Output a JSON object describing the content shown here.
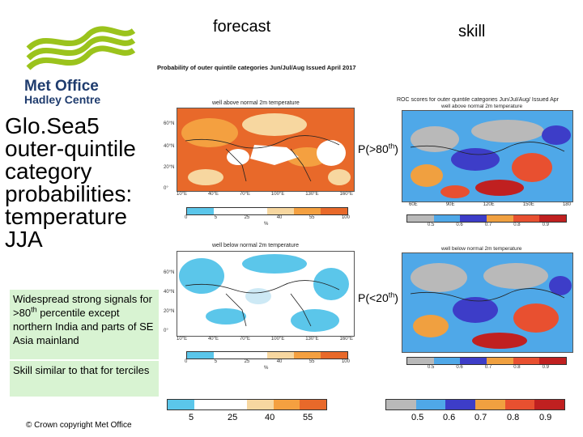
{
  "header": {
    "forecast": "forecast",
    "skill": "skill"
  },
  "logo": {
    "line1": "Met Office",
    "line2": "Hadley Centre",
    "brand_color": "#9bc31c",
    "text_color": "#1f3c6e"
  },
  "title": {
    "line1": "Glo.Sea5",
    "line2": "outer-quintile",
    "line3": "category",
    "line4": "probabilities:",
    "line5": "temperature",
    "line6": "JJA"
  },
  "notes": {
    "note1_a": "Widespread strong signals for >80",
    "note1_sup": "th",
    "note1_b": " percentile except northern India and parts of SE Asia mainland",
    "note2": "Skill similar to that for terciles"
  },
  "footer": {
    "copyright": "© Crown copyright   Met Office"
  },
  "forecast_panel": {
    "heading": "Probability of outer quintile categories Jun/Jul/Aug Issued April 2017",
    "map1_title": "well above normal 2m temperature",
    "map2_title": "well below normal 2m temperature",
    "lat_ticks": [
      "60°N",
      "40°N",
      "20°N",
      "0°"
    ],
    "lon_ticks1": [
      "10°E",
      "40°E",
      "70°E",
      "100°E",
      "130°E",
      "160°E"
    ],
    "lon_ticks2": [
      "10°E",
      "40°E",
      "70°E",
      "100°E",
      "130°E",
      "160°E"
    ],
    "cbar_ticks": [
      "0",
      "5",
      "25",
      "40",
      "55",
      "100"
    ],
    "cbar_unit": "%",
    "cbar_colors": [
      "#5bc6ea",
      "#ffffff",
      "#ffffff",
      "#f7d7a0",
      "#f4a040",
      "#e8692a"
    ]
  },
  "skill_panel": {
    "heading": "ROC scores for outer quintile categories Jun/Jul/Aug/ Issued Apr",
    "map1_title": "well above normal 2m temperature",
    "map2_title": "well below normal 2m temperature",
    "map1_label_a": "P(>80",
    "map1_label_sup": "th",
    "map1_label_b": ")",
    "map2_label_a": "P(<20",
    "map2_label_sup": "th",
    "map2_label_b": ")",
    "lon_ticks": [
      "60E",
      "90E",
      "120E",
      "150E",
      "180"
    ],
    "cbar_ticks": [
      "0.5",
      "0.6",
      "0.7",
      "0.8",
      "0.9"
    ],
    "cbar_colors": [
      "#b9b9b9",
      "#4fa8e8",
      "#3d3dc8",
      "#f0a040",
      "#e85030",
      "#c02020"
    ]
  },
  "bottom_bars": {
    "forecast_ticks": [
      "5",
      "25",
      "40",
      "55"
    ],
    "skill_ticks": [
      "0.5",
      "0.6",
      "0.7",
      "0.8",
      "0.9"
    ]
  }
}
